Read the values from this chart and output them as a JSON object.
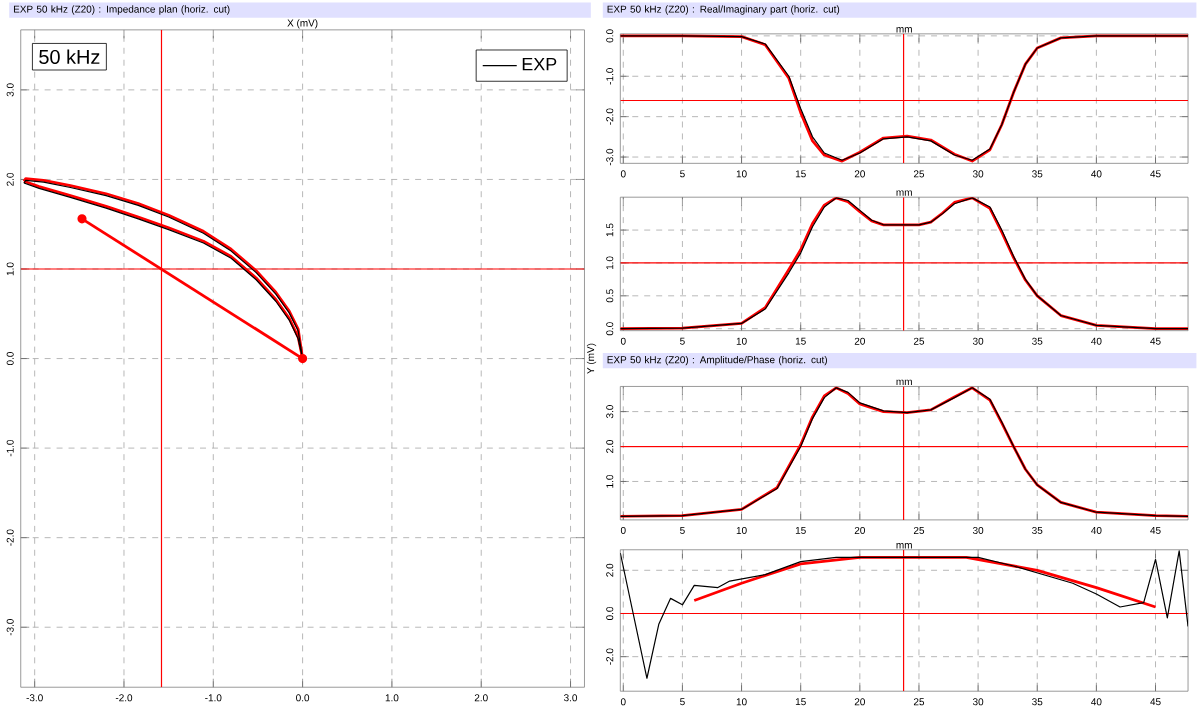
{
  "chart_data": [
    {
      "type": "line",
      "title": "EXP 50 kHz (Z20) : Impedance plan (horiz. cut)",
      "xlabel": "X (mV)",
      "ylabel": "Y (mV)",
      "annotations": [
        "50 kHz"
      ],
      "legend": "top right",
      "grid": true,
      "xlim": [
        -3.156,
        3.156
      ],
      "ylim": [
        -3.67,
        3.67
      ],
      "xticks": [
        {
          "value": -3,
          "label": "-3.0"
        },
        {
          "value": -2,
          "label": "-2.0"
        },
        {
          "value": -1,
          "label": "-1.0"
        },
        {
          "value": 0,
          "label": "0.0"
        },
        {
          "value": 1,
          "label": "1.0"
        },
        {
          "value": 2,
          "label": "2.0"
        },
        {
          "value": 3,
          "label": "3.0"
        }
      ],
      "yticks": [
        {
          "value": -3,
          "label": "-3.0"
        },
        {
          "value": -2,
          "label": "-2.0"
        },
        {
          "value": -1,
          "label": "-1.0"
        },
        {
          "value": 0,
          "label": "0.0"
        },
        {
          "value": 1,
          "label": "1.0"
        },
        {
          "value": 2,
          "label": "2.0"
        },
        {
          "value": 3,
          "label": "3.0"
        }
      ],
      "ref_lines": [
        {
          "axis": "x",
          "value": -1.58,
          "color": "#ff0000"
        },
        {
          "axis": "y",
          "value": 1.0,
          "color": "#ff0000"
        }
      ],
      "series": [
        {
          "color": "#ff0000",
          "x": [
            -3.12,
            -3.1,
            -2.9,
            -2.6,
            -2.2,
            -1.84,
            -1.5,
            -1.11,
            -0.8,
            -0.52,
            -0.3,
            -0.15,
            -0.05,
            0
          ],
          "values": [
            1.98,
            2.01,
            1.99,
            1.93,
            1.84,
            1.73,
            1.6,
            1.42,
            1.22,
            0.98,
            0.74,
            0.53,
            0.33,
            0
          ]
        },
        {
          "color": "#ff0000",
          "x": [
            -3.12,
            -2.95,
            -2.6,
            -2.2,
            -1.84,
            -1.5,
            -1.11,
            -0.8,
            -0.52,
            -0.3,
            -0.15,
            -0.05,
            0
          ],
          "values": [
            1.98,
            1.92,
            1.82,
            1.7,
            1.58,
            1.46,
            1.31,
            1.14,
            0.9,
            0.66,
            0.45,
            0.24,
            0
          ]
        },
        {
          "name": "EXP",
          "color": "#000000",
          "x": [
            -3.12,
            -3.1,
            -2.9,
            -2.6,
            -2.2,
            -1.84,
            -1.5,
            -1.11,
            -0.8,
            -0.52,
            -0.3,
            -0.15,
            -0.05,
            0
          ],
          "values": [
            1.96,
            1.99,
            1.97,
            1.91,
            1.82,
            1.71,
            1.58,
            1.4,
            1.2,
            0.96,
            0.72,
            0.51,
            0.31,
            0
          ]
        },
        {
          "color": "#000000",
          "x": [
            -3.12,
            -2.95,
            -2.6,
            -2.2,
            -1.84,
            -1.5,
            -1.11,
            -0.8,
            -0.52,
            -0.3,
            -0.15,
            -0.05,
            0
          ],
          "values": [
            1.96,
            1.9,
            1.8,
            1.68,
            1.56,
            1.44,
            1.29,
            1.12,
            0.88,
            0.64,
            0.43,
            0.22,
            0
          ]
        },
        {
          "color": "#ff0000",
          "marker": "circle",
          "x": [
            0,
            -2.47
          ],
          "values": [
            0,
            1.56
          ]
        }
      ]
    },
    {
      "type": "line",
      "title": "EXP 50 kHz (Z20) : Real/Imaginary part (horiz. cut)",
      "xlabel": "mm",
      "grid": true,
      "xlim": [
        -0.25,
        47.75
      ],
      "ylim": [
        -3.156,
        0.05
      ],
      "xticks": [
        0,
        5,
        10,
        15,
        20,
        25,
        30,
        35,
        40,
        45
      ],
      "yticks": [
        {
          "value": -3,
          "label": "-3.0"
        },
        {
          "value": -2,
          "label": "-2.0"
        },
        {
          "value": -1,
          "label": "-1.0"
        },
        {
          "value": 0,
          "label": "0.0"
        }
      ],
      "ref_lines": [
        {
          "axis": "x",
          "value": 23.7,
          "color": "#ff0000"
        },
        {
          "axis": "y",
          "value": -1.6,
          "color": "#ff0000"
        }
      ],
      "x": [
        -0.25,
        5,
        10,
        12,
        14,
        15,
        16,
        17,
        18.5,
        20,
        22,
        24,
        26,
        28,
        29.5,
        31,
        32,
        33,
        34,
        35,
        37,
        40,
        47.75
      ],
      "series": [
        {
          "color": "#ff0000",
          "values": [
            0,
            0,
            -0.02,
            -0.22,
            -1.05,
            -1.9,
            -2.6,
            -2.95,
            -3.1,
            -2.88,
            -2.53,
            -2.48,
            -2.58,
            -2.93,
            -3.1,
            -2.82,
            -2.2,
            -1.4,
            -0.7,
            -0.3,
            -0.05,
            0,
            0
          ]
        },
        {
          "color": "#000000",
          "values": [
            0,
            0,
            -0.02,
            -0.2,
            -1.0,
            -1.8,
            -2.5,
            -2.9,
            -3.08,
            -2.9,
            -2.55,
            -2.5,
            -2.6,
            -2.95,
            -3.08,
            -2.8,
            -2.2,
            -1.4,
            -0.7,
            -0.3,
            -0.05,
            0,
            0
          ]
        }
      ]
    },
    {
      "type": "line",
      "xlabel": "mm",
      "grid": true,
      "xlim": [
        -0.25,
        47.75
      ],
      "ylim": [
        -0.03,
        2.0
      ],
      "xticks": [
        0,
        5,
        10,
        15,
        20,
        25,
        30,
        35,
        40,
        45
      ],
      "yticks": [
        {
          "value": 0,
          "label": "0.0"
        },
        {
          "value": 0.5,
          "label": "0.5"
        },
        {
          "value": 1,
          "label": "1.0"
        },
        {
          "value": 1.5,
          "label": "1.5"
        }
      ],
      "ref_lines": [
        {
          "axis": "x",
          "value": 23.7,
          "color": "#ff0000"
        },
        {
          "axis": "y",
          "value": 1.0,
          "color": "#ff0000"
        }
      ],
      "x": [
        -0.25,
        5,
        10,
        12,
        14,
        15,
        16,
        17,
        18,
        19,
        20,
        21,
        22,
        25,
        26,
        27,
        28,
        29.5,
        31,
        32,
        33,
        34,
        35,
        37,
        40,
        45,
        47.75
      ],
      "series": [
        {
          "color": "#ff0000",
          "values": [
            0,
            0.01,
            0.08,
            0.32,
            0.9,
            1.2,
            1.6,
            1.88,
            1.99,
            1.93,
            1.78,
            1.64,
            1.58,
            1.58,
            1.62,
            1.76,
            1.92,
            1.99,
            1.83,
            1.47,
            1.08,
            0.74,
            0.5,
            0.2,
            0.05,
            0,
            0
          ]
        },
        {
          "color": "#000000",
          "values": [
            0,
            0.01,
            0.08,
            0.3,
            0.85,
            1.15,
            1.55,
            1.85,
            1.99,
            1.95,
            1.8,
            1.65,
            1.58,
            1.58,
            1.62,
            1.75,
            1.9,
            1.99,
            1.85,
            1.5,
            1.1,
            0.75,
            0.5,
            0.2,
            0.05,
            0,
            0
          ]
        }
      ]
    },
    {
      "type": "line",
      "title": "EXP 50 kHz (Z20) : Amplitude/Phase (horiz. cut)",
      "xlabel": "mm",
      "grid": true,
      "xlim": [
        -0.25,
        47.75
      ],
      "ylim": [
        -0.1,
        3.72
      ],
      "xticks": [
        0,
        5,
        10,
        15,
        20,
        25,
        30,
        35,
        40,
        45
      ],
      "yticks": [
        {
          "value": 1,
          "label": "1.0"
        },
        {
          "value": 2,
          "label": "2.0"
        },
        {
          "value": 3,
          "label": "3.0"
        }
      ],
      "ref_lines": [
        {
          "axis": "x",
          "value": 23.7,
          "color": "#ff0000"
        },
        {
          "axis": "y",
          "value": 2.0,
          "color": "#ff0000"
        }
      ],
      "x": [
        -0.25,
        5,
        10,
        13,
        15,
        16,
        17,
        18,
        19,
        20,
        22,
        24,
        26,
        28,
        29.5,
        31,
        32,
        33,
        34,
        35,
        37,
        40,
        45,
        47.75
      ],
      "series": [
        {
          "color": "#ff0000",
          "values": [
            0,
            0.02,
            0.2,
            0.82,
            2.05,
            2.85,
            3.45,
            3.68,
            3.52,
            3.22,
            3.0,
            2.97,
            3.05,
            3.42,
            3.68,
            3.33,
            2.68,
            2.0,
            1.35,
            0.9,
            0.4,
            0.12,
            0.02,
            0
          ]
        },
        {
          "color": "#000000",
          "values": [
            0,
            0.02,
            0.2,
            0.8,
            2.0,
            2.8,
            3.4,
            3.68,
            3.55,
            3.25,
            3.02,
            2.97,
            3.05,
            3.4,
            3.68,
            3.35,
            2.7,
            2.0,
            1.35,
            0.9,
            0.4,
            0.12,
            0.02,
            0
          ]
        }
      ]
    },
    {
      "type": "line",
      "xlabel": "mm",
      "grid": true,
      "xlim": [
        -0.25,
        47.75
      ],
      "ylim": [
        -3.6,
        2.95
      ],
      "xticks": [
        0,
        5,
        10,
        15,
        20,
        25,
        30,
        35,
        40,
        45
      ],
      "yticks": [
        {
          "value": -2,
          "label": "-2.0"
        },
        {
          "value": 0,
          "label": "0.0"
        },
        {
          "value": 2,
          "label": "2.0"
        }
      ],
      "ref_lines": [
        {
          "axis": "x",
          "value": 23.7,
          "color": "#ff0000"
        },
        {
          "axis": "y",
          "value": 0.0,
          "color": "#ff0000"
        }
      ],
      "series": [
        {
          "color": "#ff0000",
          "x": [
            6,
            10,
            15,
            20,
            29,
            35,
            40,
            45
          ],
          "values": [
            0.6,
            1.4,
            2.3,
            2.6,
            2.6,
            2.0,
            1.2,
            0.3
          ]
        },
        {
          "color": "#000000",
          "x": [
            -0.25,
            2,
            3,
            4,
            5,
            6,
            8,
            9,
            12,
            15,
            18,
            22,
            30,
            33,
            38,
            40,
            42,
            44,
            45,
            46,
            47,
            47.75
          ],
          "values": [
            2.8,
            -3.0,
            -0.5,
            0.7,
            0.4,
            1.3,
            1.2,
            1.5,
            1.8,
            2.4,
            2.6,
            2.6,
            2.6,
            2.2,
            1.4,
            0.9,
            0.3,
            0.5,
            2.5,
            -0.2,
            2.9,
            -0.6
          ]
        }
      ]
    }
  ]
}
